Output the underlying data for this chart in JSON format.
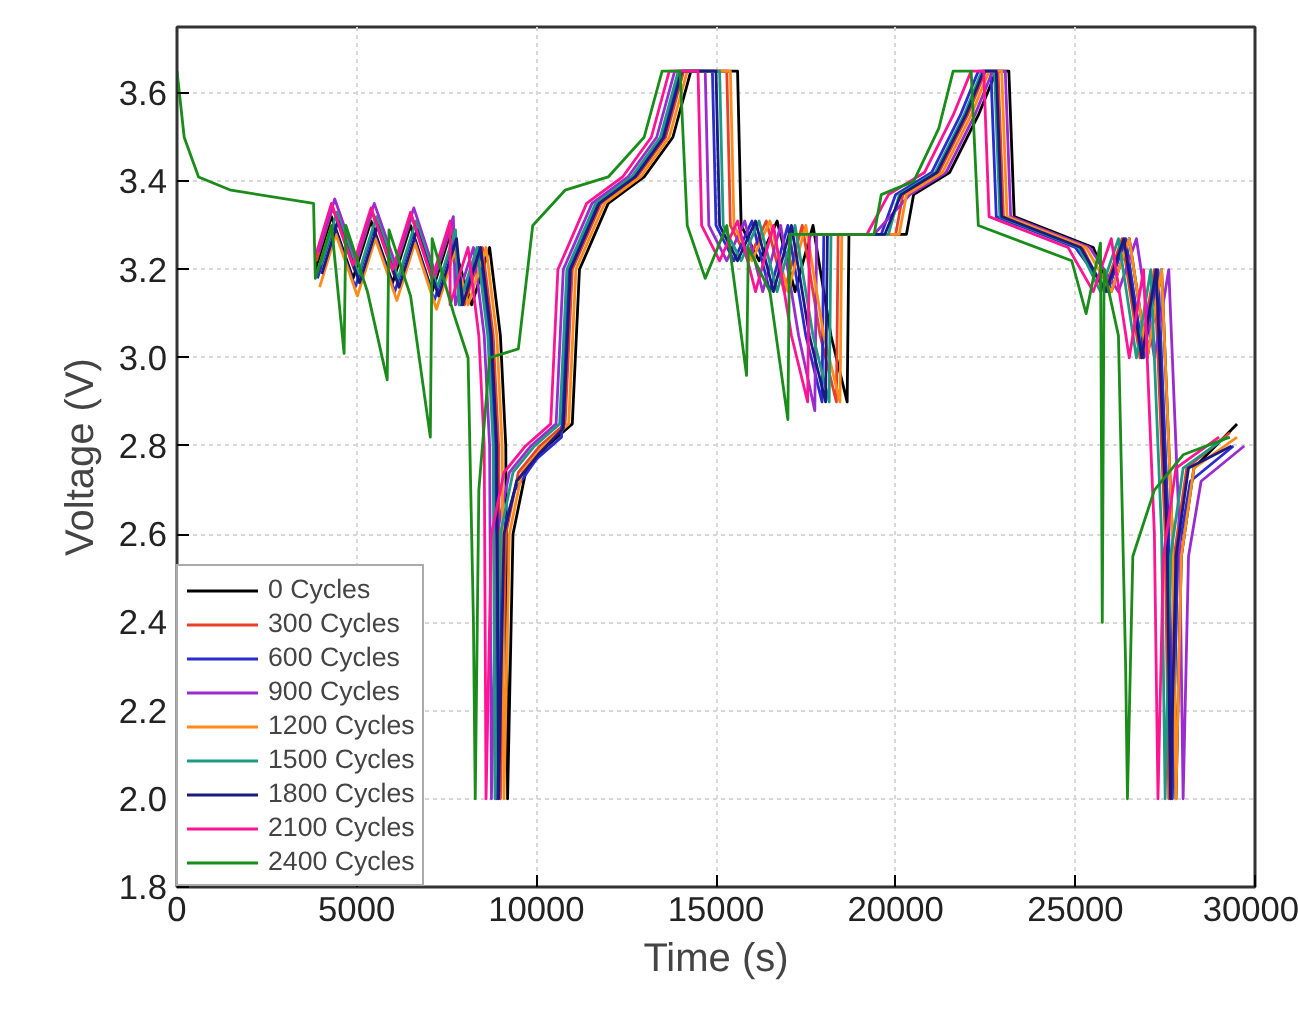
{
  "chart_data": {
    "type": "line",
    "xlabel": "Time (s)",
    "ylabel": "Voltage (V)",
    "xlim": [
      0,
      30000
    ],
    "xticks": [
      0,
      5000,
      10000,
      15000,
      20000,
      25000,
      30000
    ],
    "ylim": [
      1.8,
      3.75
    ],
    "yticks": [
      {
        "value": 1.8,
        "label": "1.8"
      },
      {
        "value": 2.0,
        "label": "2.0"
      },
      {
        "value": 2.2,
        "label": "2.2"
      },
      {
        "value": 2.4,
        "label": "2.4"
      },
      {
        "value": 2.6,
        "label": "2.6"
      },
      {
        "value": 2.8,
        "label": "2.8"
      },
      {
        "value": 3.0,
        "label": "3.0"
      },
      {
        "value": 3.2,
        "label": "3.2"
      },
      {
        "value": 3.4,
        "label": "3.4"
      },
      {
        "value": 3.6,
        "label": "3.6"
      }
    ],
    "grid": true,
    "legend": "bottom left",
    "line_style": "solid",
    "marker": "none",
    "series": [
      {
        "name": "0 Cycles",
        "color": "#000000",
        "x": [
          3850,
          4300,
          4900,
          5400,
          6000,
          6500,
          7100,
          7600,
          8200,
          8700,
          9000,
          9150,
          9200,
          9350,
          9700,
          10300,
          11000,
          11200,
          12000,
          13000,
          13800,
          14300,
          15600,
          15700,
          16200,
          16700,
          17200,
          17700,
          18200,
          18650,
          18700,
          20300,
          20500,
          21500,
          22300,
          22800,
          23150,
          23300,
          25500,
          26000,
          26500,
          27000,
          27400,
          27700,
          27800,
          27950,
          28300,
          29500
        ],
        "values": [
          3.2,
          3.32,
          3.18,
          3.31,
          3.17,
          3.3,
          3.15,
          3.28,
          3.12,
          3.25,
          3.05,
          2.8,
          2.0,
          2.6,
          2.74,
          2.8,
          2.85,
          3.2,
          3.35,
          3.41,
          3.5,
          3.65,
          3.65,
          3.3,
          3.22,
          3.31,
          3.15,
          3.3,
          3.05,
          2.9,
          3.28,
          3.28,
          3.37,
          3.42,
          3.55,
          3.65,
          3.65,
          3.32,
          3.25,
          3.15,
          3.27,
          3.0,
          3.2,
          2.6,
          2.0,
          2.55,
          2.75,
          2.85
        ]
      },
      {
        "name": "300 Cycles",
        "color": "#e8412a",
        "x": [
          3880,
          4330,
          4930,
          5430,
          6030,
          6530,
          7130,
          7630,
          8000,
          8500,
          8800,
          8950,
          9000,
          9150,
          9500,
          10100,
          10800,
          11000,
          11800,
          12800,
          13600,
          14100,
          15300,
          15400,
          15900,
          16400,
          16900,
          17400,
          17900,
          18350,
          18400,
          20000,
          20200,
          21200,
          22000,
          22500,
          22850,
          23000,
          25200,
          25800,
          26300,
          26800,
          27200,
          27500,
          27600,
          27750,
          28100,
          29300
        ],
        "values": [
          3.22,
          3.34,
          3.2,
          3.33,
          3.19,
          3.32,
          3.17,
          3.3,
          3.12,
          3.25,
          3.05,
          2.8,
          2.0,
          2.6,
          2.74,
          2.8,
          2.85,
          3.2,
          3.35,
          3.41,
          3.5,
          3.65,
          3.65,
          3.3,
          3.22,
          3.31,
          3.15,
          3.3,
          3.05,
          2.9,
          3.28,
          3.28,
          3.37,
          3.42,
          3.55,
          3.65,
          3.65,
          3.32,
          3.25,
          3.15,
          3.27,
          3.0,
          3.2,
          2.6,
          2.0,
          2.55,
          2.75,
          2.83
        ]
      },
      {
        "name": "600 Cycles",
        "color": "#2b2bd0",
        "x": [
          3910,
          4360,
          4960,
          5460,
          6060,
          6560,
          7160,
          7660,
          7900,
          8400,
          8700,
          8850,
          8900,
          9050,
          9400,
          10000,
          10700,
          10900,
          11700,
          12700,
          13500,
          14000,
          14900,
          15000,
          15500,
          16000,
          16500,
          17000,
          17500,
          17950,
          18000,
          19600,
          20000,
          21000,
          21800,
          22300,
          22650,
          22800,
          25000,
          25900,
          26400,
          26900,
          27300,
          27600,
          27700,
          27850,
          28200,
          29400
        ],
        "values": [
          3.18,
          3.3,
          3.16,
          3.29,
          3.15,
          3.28,
          3.13,
          3.26,
          3.12,
          3.25,
          3.05,
          2.8,
          2.0,
          2.6,
          2.7,
          2.77,
          2.82,
          3.2,
          3.35,
          3.41,
          3.5,
          3.65,
          3.65,
          3.3,
          3.22,
          3.31,
          3.15,
          3.3,
          3.05,
          2.9,
          3.28,
          3.28,
          3.37,
          3.42,
          3.55,
          3.65,
          3.65,
          3.32,
          3.25,
          3.15,
          3.27,
          3.0,
          3.2,
          2.6,
          2.0,
          2.55,
          2.72,
          2.8
        ]
      },
      {
        "name": "900 Cycles",
        "color": "#9b2bd0",
        "x": [
          3940,
          4390,
          4990,
          5490,
          6090,
          6590,
          7190,
          7690,
          7750,
          8250,
          8550,
          8700,
          8750,
          8900,
          9250,
          9850,
          10550,
          10750,
          11550,
          12550,
          13350,
          13850,
          14700,
          14800,
          15300,
          15800,
          16300,
          16800,
          17300,
          17750,
          17800,
          19400,
          20400,
          21400,
          22200,
          22700,
          23050,
          23200,
          25400,
          26200,
          26700,
          27200,
          27600,
          27900,
          28000,
          28150,
          28500,
          29700
        ],
        "values": [
          3.24,
          3.36,
          3.22,
          3.35,
          3.21,
          3.34,
          3.19,
          3.32,
          3.12,
          3.25,
          3.05,
          2.8,
          2.0,
          2.6,
          2.74,
          2.8,
          2.85,
          3.2,
          3.35,
          3.41,
          3.5,
          3.65,
          3.65,
          3.3,
          3.22,
          3.31,
          3.15,
          3.3,
          3.05,
          2.88,
          3.28,
          3.28,
          3.37,
          3.42,
          3.55,
          3.65,
          3.65,
          3.32,
          3.25,
          3.15,
          3.27,
          3.0,
          3.2,
          2.6,
          2.0,
          2.55,
          2.72,
          2.8
        ]
      },
      {
        "name": "1200 Cycles",
        "color": "#ff8c1a",
        "x": [
          3970,
          4420,
          5020,
          5520,
          6120,
          6620,
          7220,
          7720,
          8100,
          8600,
          8900,
          9050,
          9100,
          9250,
          9600,
          10200,
          10900,
          11100,
          11900,
          12900,
          13700,
          14200,
          15400,
          15500,
          16000,
          16500,
          17000,
          17500,
          18000,
          18450,
          18500,
          20100,
          20300,
          21300,
          22100,
          22600,
          22950,
          23100,
          25300,
          26000,
          26500,
          27000,
          27400,
          27700,
          27800,
          27950,
          28300,
          29500
        ],
        "values": [
          3.16,
          3.28,
          3.14,
          3.27,
          3.13,
          3.26,
          3.11,
          3.24,
          3.12,
          3.25,
          3.05,
          2.8,
          2.0,
          2.6,
          2.74,
          2.8,
          2.85,
          3.2,
          3.35,
          3.41,
          3.5,
          3.65,
          3.65,
          3.3,
          3.22,
          3.31,
          3.15,
          3.3,
          3.05,
          2.9,
          3.28,
          3.28,
          3.37,
          3.42,
          3.55,
          3.65,
          3.65,
          3.32,
          3.25,
          3.15,
          3.27,
          3.0,
          3.2,
          2.6,
          2.0,
          2.55,
          2.75,
          2.82
        ]
      },
      {
        "name": "1500 Cycles",
        "color": "#1f9a82",
        "x": [
          4000,
          4450,
          5050,
          5550,
          6150,
          6650,
          7250,
          7750,
          7850,
          8350,
          8650,
          8800,
          8850,
          9000,
          9350,
          9950,
          10650,
          10850,
          11650,
          12650,
          13450,
          13950,
          15100,
          15200,
          15700,
          16200,
          16700,
          17200,
          17700,
          18150,
          18200,
          19800,
          20100,
          21100,
          21900,
          22400,
          22750,
          22900,
          25100,
          25700,
          26200,
          26700,
          27100,
          27400,
          27500,
          27650,
          28000,
          29200
        ],
        "values": [
          3.21,
          3.33,
          3.19,
          3.32,
          3.18,
          3.31,
          3.16,
          3.29,
          3.12,
          3.25,
          3.05,
          2.8,
          2.0,
          2.6,
          2.74,
          2.8,
          2.85,
          3.2,
          3.35,
          3.41,
          3.5,
          3.65,
          3.65,
          3.3,
          3.22,
          3.31,
          3.15,
          3.3,
          3.05,
          2.9,
          3.28,
          3.28,
          3.37,
          3.42,
          3.55,
          3.65,
          3.65,
          3.32,
          3.25,
          3.15,
          3.27,
          3.0,
          3.2,
          2.6,
          2.0,
          2.55,
          2.75,
          2.82
        ]
      },
      {
        "name": "1800 Cycles",
        "color": "#1a1a80",
        "x": [
          4030,
          4480,
          5080,
          5580,
          6180,
          6680,
          7280,
          7780,
          7950,
          8450,
          8750,
          8900,
          8950,
          9100,
          9450,
          10050,
          10750,
          10950,
          11750,
          12750,
          13550,
          14050,
          15000,
          15100,
          15600,
          16100,
          16600,
          17100,
          17600,
          18050,
          18100,
          19700,
          20150,
          21150,
          21950,
          22450,
          22800,
          22950,
          25150,
          25850,
          26350,
          26850,
          27250,
          27550,
          27650,
          27800,
          28150,
          29350
        ],
        "values": [
          3.19,
          3.31,
          3.17,
          3.3,
          3.16,
          3.29,
          3.14,
          3.27,
          3.12,
          3.25,
          3.05,
          2.8,
          2.0,
          2.6,
          2.72,
          2.78,
          2.84,
          3.2,
          3.35,
          3.41,
          3.5,
          3.65,
          3.65,
          3.3,
          3.22,
          3.31,
          3.15,
          3.3,
          3.05,
          2.9,
          3.28,
          3.28,
          3.37,
          3.42,
          3.55,
          3.65,
          3.65,
          3.32,
          3.25,
          3.15,
          3.27,
          3.0,
          3.2,
          2.6,
          2.0,
          2.55,
          2.75,
          2.8
        ]
      },
      {
        "name": "2100 Cycles",
        "color": "#ff1493",
        "x": [
          3850,
          4300,
          4900,
          5400,
          6000,
          6500,
          7100,
          7600,
          7600,
          8100,
          8400,
          8550,
          8600,
          8750,
          9100,
          9700,
          10400,
          10600,
          11400,
          12400,
          13200,
          13700,
          14500,
          14600,
          15100,
          15600,
          16100,
          16600,
          17100,
          17550,
          17600,
          19200,
          19800,
          20800,
          21600,
          22100,
          22450,
          22600,
          24800,
          25500,
          26000,
          26500,
          26900,
          27200,
          27300,
          27450,
          27800,
          29000
        ],
        "values": [
          3.23,
          3.35,
          3.21,
          3.34,
          3.2,
          3.33,
          3.18,
          3.31,
          3.12,
          3.25,
          3.05,
          2.8,
          2.0,
          2.6,
          2.74,
          2.8,
          2.85,
          3.2,
          3.35,
          3.41,
          3.5,
          3.65,
          3.65,
          3.3,
          3.22,
          3.31,
          3.15,
          3.3,
          3.05,
          2.9,
          3.28,
          3.28,
          3.37,
          3.42,
          3.55,
          3.65,
          3.65,
          3.32,
          3.25,
          3.15,
          3.27,
          3.0,
          3.2,
          2.6,
          2.0,
          2.55,
          2.75,
          2.82
        ]
      },
      {
        "name": "2400 Cycles",
        "color": "#1a8c1a",
        "x": [
          0,
          200,
          600,
          1500,
          3800,
          3850,
          4300,
          4650,
          4700,
          5300,
          5850,
          5900,
          6500,
          7050,
          7100,
          7700,
          8100,
          8250,
          8300,
          8400,
          8700,
          9500,
          9900,
          10800,
          12000,
          13000,
          13500,
          14000,
          14200,
          14700,
          15300,
          15850,
          15900,
          16500,
          17000,
          17050,
          19400,
          19600,
          20500,
          21200,
          21600,
          22100,
          22300,
          24900,
          25300,
          25700,
          25750,
          25800,
          26200,
          26400,
          26450,
          26600,
          27200,
          28000,
          29300
        ],
        "values": [
          3.65,
          3.5,
          3.41,
          3.38,
          3.35,
          3.18,
          3.3,
          3.01,
          3.3,
          3.15,
          2.95,
          3.29,
          3.14,
          2.82,
          3.27,
          3.1,
          3.0,
          2.4,
          2.0,
          2.7,
          3.0,
          3.02,
          3.3,
          3.38,
          3.41,
          3.5,
          3.65,
          3.65,
          3.3,
          3.18,
          3.3,
          2.96,
          3.25,
          3.15,
          2.86,
          3.28,
          3.28,
          3.37,
          3.4,
          3.52,
          3.65,
          3.65,
          3.3,
          3.22,
          3.1,
          3.26,
          2.4,
          3.2,
          3.05,
          2.3,
          2.0,
          2.55,
          2.7,
          2.78,
          2.82
        ]
      }
    ]
  }
}
